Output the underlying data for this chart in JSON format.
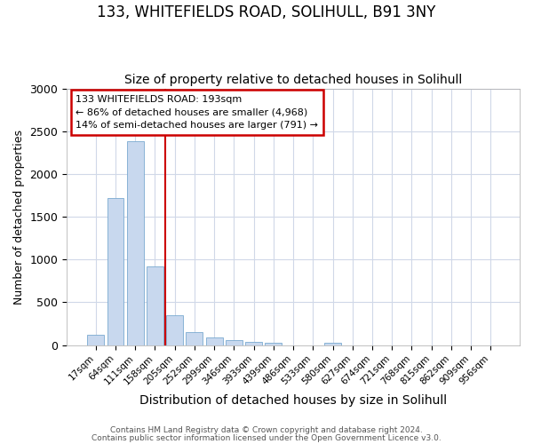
{
  "title": "133, WHITEFIELDS ROAD, SOLIHULL, B91 3NY",
  "subtitle": "Size of property relative to detached houses in Solihull",
  "xlabel": "Distribution of detached houses by size in Solihull",
  "ylabel": "Number of detached properties",
  "bar_color": "#c8d8ee",
  "bar_edge_color": "#7aaad0",
  "categories": [
    "17sqm",
    "64sqm",
    "111sqm",
    "158sqm",
    "205sqm",
    "252sqm",
    "299sqm",
    "346sqm",
    "393sqm",
    "439sqm",
    "486sqm",
    "533sqm",
    "580sqm",
    "627sqm",
    "674sqm",
    "721sqm",
    "768sqm",
    "815sqm",
    "862sqm",
    "909sqm",
    "956sqm"
  ],
  "values": [
    120,
    1720,
    2380,
    920,
    350,
    150,
    90,
    55,
    40,
    30,
    0,
    0,
    28,
    0,
    0,
    0,
    0,
    0,
    0,
    0,
    0
  ],
  "red_line_x": 4.0,
  "annotation_text": "133 WHITEFIELDS ROAD: 193sqm\n← 86% of detached houses are smaller (4,968)\n14% of semi-detached houses are larger (791) →",
  "annotation_box_color": "#ffffff",
  "annotation_box_edge": "#cc0000",
  "red_line_color": "#cc0000",
  "ylim": [
    0,
    3000
  ],
  "yticks": [
    0,
    500,
    1000,
    1500,
    2000,
    2500,
    3000
  ],
  "footer1": "Contains HM Land Registry data © Crown copyright and database right 2024.",
  "footer2": "Contains public sector information licensed under the Open Government Licence v3.0.",
  "background_color": "#ffffff",
  "plot_bg_color": "#ffffff",
  "grid_color": "#d0d8e8",
  "title_fontsize": 12,
  "subtitle_fontsize": 10,
  "ylabel_fontsize": 9,
  "xlabel_fontsize": 10
}
